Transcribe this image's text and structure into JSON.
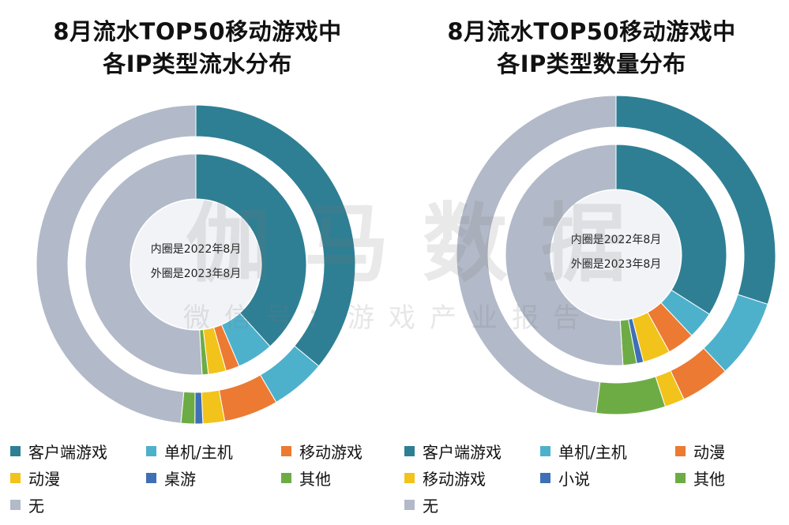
{
  "colors": {
    "teal": "#2e7f94",
    "light_blue": "#4eb1cc",
    "orange": "#ec7a33",
    "yellow": "#f2c31a",
    "blue": "#3f6fb5",
    "green": "#6dac45",
    "gray": "#b2b9c8"
  },
  "watermark": {
    "big": "伽马数据",
    "small": "微信号：游戏产业报告"
  },
  "chart_data": [
    {
      "type": "pie",
      "title_lines": [
        "8月流水TOP50移动游戏中",
        "各IP类型流水分布"
      ],
      "center_note": [
        "内圈是2022年8月",
        "外圈是2023年8月"
      ],
      "legend_position": "bottom",
      "legend": [
        {
          "label": "客户端游戏",
          "color": "#2e7f94"
        },
        {
          "label": "单机/主机",
          "color": "#4eb1cc"
        },
        {
          "label": "移动游戏",
          "color": "#ec7a33"
        },
        {
          "label": "动漫",
          "color": "#f2c31a"
        },
        {
          "label": "桌游",
          "color": "#3f6fb5"
        },
        {
          "label": "其他",
          "color": "#6dac45"
        },
        {
          "label": "无",
          "color": "#b2b9c8"
        }
      ],
      "series": [
        {
          "name": "外圈是2023年8月",
          "ring": "outer",
          "slices": [
            {
              "category": "客户端游戏",
              "value": 36.0,
              "color": "#2e7f94"
            },
            {
              "category": "单机/主机",
              "value": 5.6,
              "color": "#4eb1cc"
            },
            {
              "category": "移动游戏",
              "value": 5.5,
              "color": "#ec7a33"
            },
            {
              "category": "动漫",
              "value": 2.2,
              "color": "#f2c31a"
            },
            {
              "category": "桌游",
              "value": 0.8,
              "color": "#3f6fb5"
            },
            {
              "category": "其他",
              "value": 1.4,
              "color": "#6dac45"
            },
            {
              "category": "无",
              "value": 48.5,
              "color": "#b2b9c8"
            }
          ]
        },
        {
          "name": "内圈是2022年8月",
          "ring": "inner",
          "slices": [
            {
              "category": "客户端游戏",
              "value": 38.3,
              "color": "#2e7f94"
            },
            {
              "category": "单机/主机",
              "value": 5.3,
              "color": "#4eb1cc"
            },
            {
              "category": "移动游戏",
              "value": 2.0,
              "color": "#ec7a33"
            },
            {
              "category": "动漫",
              "value": 2.6,
              "color": "#f2c31a"
            },
            {
              "category": "其他",
              "value": 0.9,
              "color": "#6dac45"
            },
            {
              "category": "无",
              "value": 50.9,
              "color": "#b2b9c8"
            }
          ]
        }
      ]
    },
    {
      "type": "pie",
      "title_lines": [
        "8月流水TOP50移动游戏中",
        "各IP类型数量分布"
      ],
      "center_note": [
        "内圈是2022年8月",
        "外圈是2023年8月"
      ],
      "legend_position": "bottom",
      "legend": [
        {
          "label": "客户端游戏",
          "color": "#2e7f94"
        },
        {
          "label": "单机/主机",
          "color": "#4eb1cc"
        },
        {
          "label": "动漫",
          "color": "#ec7a33"
        },
        {
          "label": "移动游戏",
          "color": "#f2c31a"
        },
        {
          "label": "小说",
          "color": "#3f6fb5"
        },
        {
          "label": "其他",
          "color": "#6dac45"
        },
        {
          "label": "无",
          "color": "#b2b9c8"
        }
      ],
      "series": [
        {
          "name": "外圈是2023年8月",
          "ring": "outer",
          "slices": [
            {
              "category": "客户端游戏",
              "value": 30.0,
              "color": "#2e7f94"
            },
            {
              "category": "单机/主机",
              "value": 8.0,
              "color": "#4eb1cc"
            },
            {
              "category": "动漫",
              "value": 5.0,
              "color": "#ec7a33"
            },
            {
              "category": "移动游戏",
              "value": 2.0,
              "color": "#f2c31a"
            },
            {
              "category": "其他",
              "value": 7.0,
              "color": "#6dac45"
            },
            {
              "category": "无",
              "value": 48.0,
              "color": "#b2b9c8"
            }
          ]
        },
        {
          "name": "内圈是2022年8月",
          "ring": "inner",
          "slices": [
            {
              "category": "客户端游戏",
              "value": 34.0,
              "color": "#2e7f94"
            },
            {
              "category": "单机/主机",
              "value": 4.0,
              "color": "#4eb1cc"
            },
            {
              "category": "动漫",
              "value": 4.0,
              "color": "#ec7a33"
            },
            {
              "category": "移动游戏",
              "value": 4.0,
              "color": "#f2c31a"
            },
            {
              "category": "小说",
              "value": 1.0,
              "color": "#3f6fb5"
            },
            {
              "category": "其他",
              "value": 2.0,
              "color": "#6dac45"
            },
            {
              "category": "无",
              "value": 51.0,
              "color": "#b2b9c8"
            }
          ]
        }
      ]
    }
  ]
}
